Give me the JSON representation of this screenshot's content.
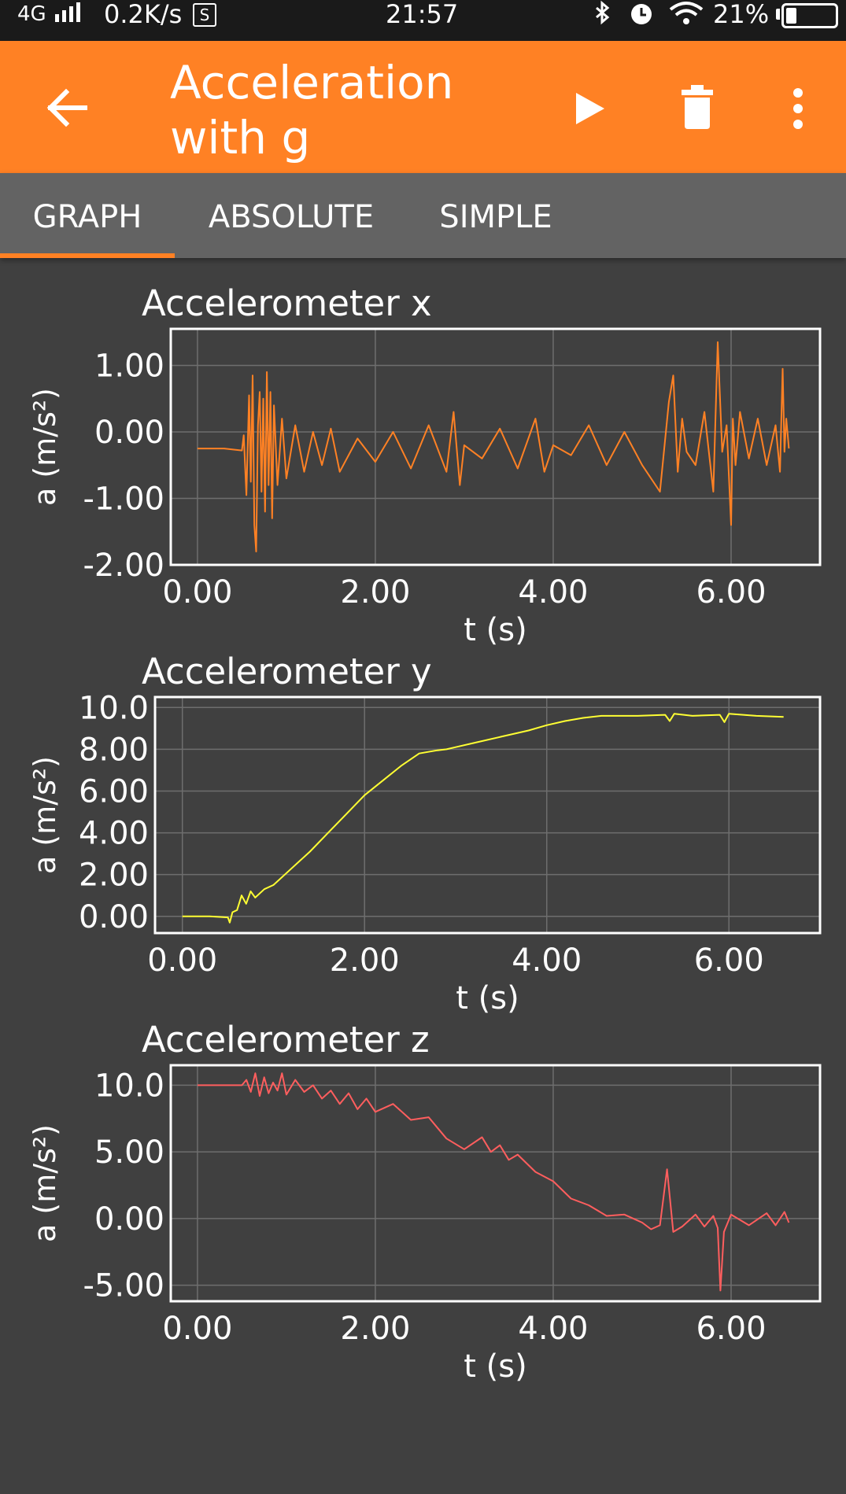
{
  "status_bar": {
    "network": "4G",
    "speed": "0.2K/s",
    "s_badge": "S",
    "time": "21:57",
    "battery": "21%",
    "icons": [
      "signal-icon",
      "sim-badge-icon",
      "bluetooth-icon",
      "alarm-icon",
      "wifi-icon",
      "battery-icon"
    ]
  },
  "app_bar": {
    "title": "Acceleration with g",
    "back_icon": "back-arrow-icon",
    "play_icon": "play-icon",
    "delete_icon": "trash-icon",
    "more_icon": "more-vert-icon",
    "color": "#ff8124"
  },
  "tabs": [
    {
      "label": "GRAPH",
      "selected": true
    },
    {
      "label": "ABSOLUTE",
      "selected": false
    },
    {
      "label": "SIMPLE",
      "selected": false
    }
  ],
  "chart_data": [
    {
      "type": "line",
      "title": "Accelerometer x",
      "xlabel": "t (s)",
      "ylabel": "a (m/s²)",
      "color": "#ff8124",
      "xlim": [
        -0.3,
        7.0
      ],
      "ylim": [
        -2.0,
        1.55
      ],
      "xticks": [
        0,
        2,
        4,
        6
      ],
      "xtick_labels": [
        "0.00",
        "2.00",
        "4.00",
        "6.00"
      ],
      "yticks": [
        1,
        0,
        -1,
        -2
      ],
      "ytick_labels": [
        "1.00",
        "0.00",
        "-1.00",
        "-2.00"
      ],
      "grid": true,
      "series": [
        {
          "x": [
            0.0,
            0.3,
            0.5,
            0.52,
            0.55,
            0.58,
            0.6,
            0.62,
            0.64,
            0.66,
            0.68,
            0.7,
            0.72,
            0.74,
            0.76,
            0.78,
            0.8,
            0.82,
            0.84,
            0.86,
            0.9,
            0.95,
            1.0,
            1.1,
            1.2,
            1.3,
            1.4,
            1.5,
            1.6,
            1.8,
            2.0,
            2.2,
            2.4,
            2.6,
            2.8,
            2.88,
            2.95,
            3.0,
            3.2,
            3.4,
            3.6,
            3.8,
            3.9,
            4.0,
            4.2,
            4.4,
            4.6,
            4.8,
            5.0,
            5.2,
            5.3,
            5.35,
            5.4,
            5.45,
            5.5,
            5.6,
            5.7,
            5.8,
            5.85,
            5.9,
            5.95,
            6.0,
            6.02,
            6.05,
            6.1,
            6.2,
            6.3,
            6.4,
            6.5,
            6.55,
            6.58,
            6.6,
            6.62,
            6.65
          ],
          "y": [
            -0.25,
            -0.25,
            -0.28,
            -0.05,
            -0.95,
            0.55,
            -0.75,
            0.85,
            -1.4,
            -1.8,
            0.1,
            0.6,
            -0.9,
            0.5,
            -1.2,
            0.9,
            -0.8,
            0.6,
            -1.3,
            0.4,
            -0.8,
            0.2,
            -0.7,
            0.1,
            -0.6,
            0.0,
            -0.5,
            0.05,
            -0.6,
            -0.1,
            -0.45,
            0.0,
            -0.55,
            0.1,
            -0.6,
            0.3,
            -0.8,
            -0.2,
            -0.4,
            0.05,
            -0.55,
            0.2,
            -0.6,
            -0.2,
            -0.35,
            0.1,
            -0.5,
            0.0,
            -0.5,
            -0.9,
            0.45,
            0.85,
            -0.6,
            0.2,
            -0.3,
            -0.5,
            0.3,
            -0.9,
            1.35,
            -0.3,
            0.1,
            -1.4,
            0.2,
            -0.5,
            0.3,
            -0.4,
            0.2,
            -0.5,
            0.1,
            -0.6,
            0.95,
            -0.3,
            0.2,
            -0.25
          ]
        }
      ]
    },
    {
      "type": "line",
      "title": "Accelerometer y",
      "xlabel": "t (s)",
      "ylabel": "a (m/s²)",
      "color": "#ffff33",
      "xlim": [
        -0.3,
        7.0
      ],
      "ylim": [
        -0.8,
        10.5
      ],
      "xticks": [
        0,
        2,
        4,
        6
      ],
      "xtick_labels": [
        "0.00",
        "2.00",
        "4.00",
        "6.00"
      ],
      "yticks": [
        10,
        8,
        6,
        4,
        2,
        0
      ],
      "ytick_labels": [
        "10.0",
        "8.00",
        "6.00",
        "4.00",
        "2.00",
        "0.00"
      ],
      "grid": true,
      "series": [
        {
          "x": [
            0.0,
            0.3,
            0.5,
            0.52,
            0.55,
            0.6,
            0.65,
            0.7,
            0.75,
            0.8,
            0.9,
            1.0,
            1.2,
            1.4,
            1.6,
            1.8,
            2.0,
            2.2,
            2.4,
            2.6,
            2.8,
            2.9,
            3.0,
            3.2,
            3.5,
            3.8,
            4.0,
            4.2,
            4.4,
            4.6,
            5.0,
            5.3,
            5.35,
            5.4,
            5.6,
            5.9,
            5.95,
            6.0,
            6.3,
            6.6
          ],
          "y": [
            0.0,
            0.0,
            -0.05,
            -0.3,
            0.2,
            0.3,
            1.0,
            0.6,
            1.2,
            0.9,
            1.3,
            1.5,
            2.3,
            3.1,
            4.0,
            4.9,
            5.8,
            6.5,
            7.2,
            7.8,
            7.95,
            8.0,
            8.1,
            8.3,
            8.6,
            8.9,
            9.15,
            9.35,
            9.5,
            9.6,
            9.6,
            9.65,
            9.35,
            9.7,
            9.6,
            9.65,
            9.3,
            9.7,
            9.6,
            9.55
          ]
        }
      ]
    },
    {
      "type": "line",
      "title": "Accelerometer z",
      "xlabel": "t (s)",
      "ylabel": "a (m/s²)",
      "color": "#ff5e5e",
      "xlim": [
        -0.3,
        7.0
      ],
      "ylim": [
        -6.2,
        11.5
      ],
      "xticks": [
        0,
        2,
        4,
        6
      ],
      "xtick_labels": [
        "0.00",
        "2.00",
        "4.00",
        "6.00"
      ],
      "yticks": [
        10,
        5,
        0,
        -5
      ],
      "ytick_labels": [
        "10.0",
        "5.00",
        "0.00",
        "-5.00"
      ],
      "grid": true,
      "series": [
        {
          "x": [
            0.0,
            0.3,
            0.5,
            0.55,
            0.6,
            0.65,
            0.7,
            0.75,
            0.8,
            0.85,
            0.9,
            0.95,
            1.0,
            1.1,
            1.2,
            1.3,
            1.4,
            1.5,
            1.6,
            1.7,
            1.8,
            1.9,
            2.0,
            2.2,
            2.4,
            2.6,
            2.7,
            2.8,
            3.0,
            3.2,
            3.3,
            3.4,
            3.5,
            3.6,
            3.8,
            4.0,
            4.2,
            4.4,
            4.6,
            4.8,
            5.0,
            5.1,
            5.2,
            5.28,
            5.35,
            5.45,
            5.6,
            5.7,
            5.8,
            5.85,
            5.88,
            5.92,
            6.0,
            6.2,
            6.4,
            6.5,
            6.6,
            6.65
          ],
          "y": [
            10.0,
            10.0,
            10.0,
            10.4,
            9.5,
            10.9,
            9.2,
            10.6,
            9.4,
            10.2,
            9.6,
            10.9,
            9.3,
            10.4,
            9.5,
            10.0,
            9.0,
            9.6,
            8.6,
            9.4,
            8.2,
            9.0,
            8.0,
            8.6,
            7.4,
            7.6,
            6.8,
            6.0,
            5.2,
            6.1,
            5.0,
            5.5,
            4.4,
            4.8,
            3.5,
            2.8,
            1.5,
            1.0,
            0.2,
            0.3,
            -0.3,
            -0.8,
            -0.5,
            3.7,
            -1.0,
            -0.6,
            0.3,
            -0.6,
            0.2,
            -0.7,
            -5.4,
            -1.0,
            0.3,
            -0.5,
            0.4,
            -0.5,
            0.5,
            -0.3
          ]
        }
      ]
    }
  ]
}
